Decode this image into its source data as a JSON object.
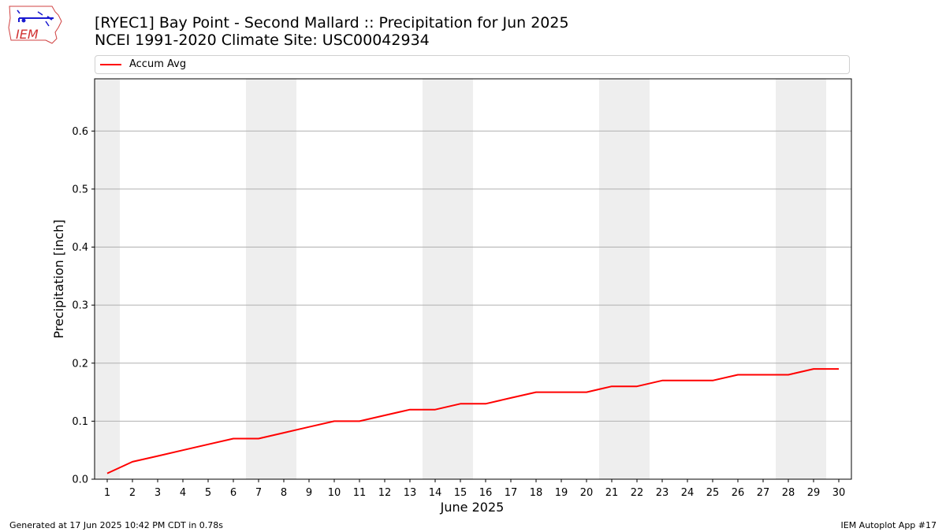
{
  "header": {
    "title_line1": "[RYEC1] Bay Point - Second Mallard :: Precipitation for Jun 2025",
    "title_line2": "NCEI 1991-2020 Climate Site: USC00042934"
  },
  "logo": {
    "text": "IEM",
    "icon": "iem-logo-icon"
  },
  "footer": {
    "generated": "Generated at 17 Jun 2025 10:42 PM CDT in 0.78s",
    "app": "IEM Autoplot App #17"
  },
  "colors": {
    "line": "#ff0000",
    "weekend": "#eeeeee",
    "grid": "#b0b0b0"
  },
  "chart_data": {
    "type": "line",
    "title": "[RYEC1] Bay Point - Second Mallard :: Precipitation for Jun 2025",
    "xlabel": "June 2025",
    "ylabel": "Precipitation [inch]",
    "x": [
      1,
      2,
      3,
      4,
      5,
      6,
      7,
      8,
      9,
      10,
      11,
      12,
      13,
      14,
      15,
      16,
      17,
      18,
      19,
      20,
      21,
      22,
      23,
      24,
      25,
      26,
      27,
      28,
      29,
      30
    ],
    "x_tick_labels": [
      "1",
      "2",
      "3",
      "4",
      "5",
      "6",
      "7",
      "8",
      "9",
      "10",
      "11",
      "12",
      "13",
      "14",
      "15",
      "16",
      "17",
      "18",
      "19",
      "20",
      "21",
      "22",
      "23",
      "24",
      "25",
      "26",
      "27",
      "28",
      "29",
      "30"
    ],
    "y_ticks": [
      0.0,
      0.1,
      0.2,
      0.3,
      0.4,
      0.5,
      0.6
    ],
    "y_tick_labels": [
      "0.0",
      "0.1",
      "0.2",
      "0.3",
      "0.4",
      "0.5",
      "0.6"
    ],
    "xlim": [
      0.5,
      30.5
    ],
    "ylim": [
      0,
      0.69
    ],
    "grid": "horizontal",
    "legend_position": "top",
    "shaded_days": [
      1,
      7,
      8,
      14,
      15,
      21,
      22,
      28,
      29
    ],
    "series": [
      {
        "name": "Accum Avg",
        "color": "#ff0000",
        "values": [
          0.01,
          0.03,
          0.04,
          0.05,
          0.06,
          0.07,
          0.07,
          0.08,
          0.09,
          0.1,
          0.1,
          0.11,
          0.12,
          0.12,
          0.13,
          0.13,
          0.14,
          0.15,
          0.15,
          0.15,
          0.16,
          0.16,
          0.17,
          0.17,
          0.17,
          0.18,
          0.18,
          0.18,
          0.19,
          0.19
        ]
      }
    ]
  }
}
